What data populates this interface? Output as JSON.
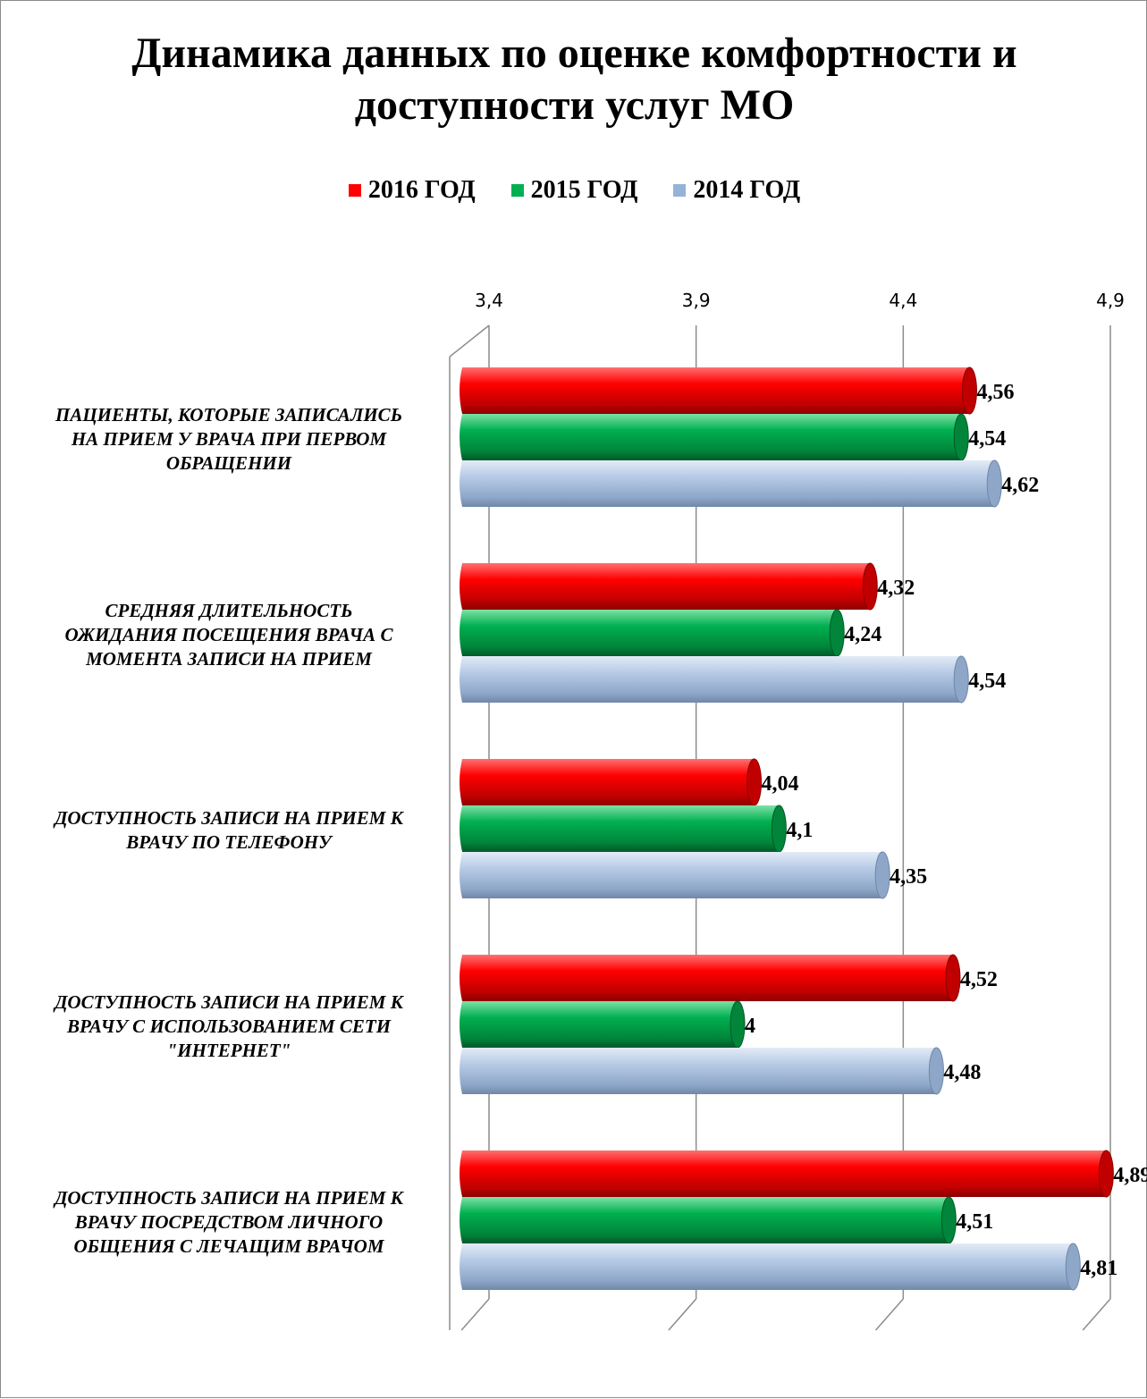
{
  "chart_data": {
    "type": "bar",
    "orientation": "horizontal",
    "title": "Динамика данных по оценке комфортности и доступности услуг МО",
    "xlim": [
      3.4,
      4.9
    ],
    "xticks": [
      "3,4",
      "3,9",
      "4,4",
      "4,9"
    ],
    "xtick_values": [
      3.4,
      3.9,
      4.4,
      4.9
    ],
    "grid": true,
    "legend_position": "top",
    "categories": [
      "ПАЦИЕНТЫ, КОТОРЫЕ ЗАПИСАЛИСЬ НА ПРИЕМ У ВРАЧА ПРИ ПЕРВОМ ОБРАЩЕНИИ",
      "СРЕДНЯЯ ДЛИТЕЛЬНОСТЬ ОЖИДАНИЯ ПОСЕЩЕНИЯ ВРАЧА С МОМЕНТА ЗАПИСИ НА ПРИЕМ",
      "ДОСТУПНОСТЬ ЗАПИСИ НА ПРИЕМ К ВРАЧУ ПО ТЕЛЕФОНУ",
      "ДОСТУПНОСТЬ ЗАПИСИ НА ПРИЕМ К ВРАЧУ  С ИСПОЛЬЗОВАНИЕМ СЕТИ \"ИНТЕРНЕТ\"",
      "ДОСТУПНОСТЬ ЗАПИСИ НА ПРИЕМ К ВРАЧУ ПОСРЕДСТВОМ ЛИЧНОГО ОБЩЕНИЯ С ЛЕЧАЩИМ ВРАЧОМ"
    ],
    "category_lines": [
      [
        "ПАЦИЕНТЫ, КОТОРЫЕ ЗАПИСАЛИСЬ",
        "НА ПРИЕМ У ВРАЧА ПРИ ПЕРВОМ",
        "ОБРАЩЕНИИ"
      ],
      [
        "СРЕДНЯЯ ДЛИТЕЛЬНОСТЬ",
        "ОЖИДАНИЯ ПОСЕЩЕНИЯ ВРАЧА С",
        "МОМЕНТА ЗАПИСИ НА ПРИЕМ"
      ],
      [
        "ДОСТУПНОСТЬ ЗАПИСИ НА ПРИЕМ К",
        "ВРАЧУ ПО ТЕЛЕФОНУ"
      ],
      [
        "ДОСТУПНОСТЬ ЗАПИСИ НА ПРИЕМ К",
        "ВРАЧУ  С ИСПОЛЬЗОВАНИЕМ СЕТИ",
        "\"ИНТЕРНЕТ\""
      ],
      [
        "ДОСТУПНОСТЬ ЗАПИСИ НА ПРИЕМ К",
        "ВРАЧУ ПОСРЕДСТВОМ ЛИЧНОГО",
        "ОБЩЕНИЯ С ЛЕЧАЩИМ ВРАЧОМ"
      ]
    ],
    "series": [
      {
        "name": "2016 ГОД",
        "color": "#ff0000",
        "values": [
          4.56,
          4.32,
          4.04,
          4.52,
          4.89
        ],
        "labels": [
          "4,56",
          "4,32",
          "4,04",
          "4,52",
          "4,89"
        ]
      },
      {
        "name": "2015 ГОД",
        "color": "#00b050",
        "values": [
          4.54,
          4.24,
          4.1,
          4.0,
          4.51
        ],
        "labels": [
          "4,54",
          "4,24",
          "4,1",
          "4",
          "4,51"
        ]
      },
      {
        "name": "2014 ГОД",
        "color": "#95b3d7",
        "values": [
          4.62,
          4.54,
          4.35,
          4.48,
          4.81
        ],
        "labels": [
          "4,62",
          "4,54",
          "4,35",
          "4,48",
          "4,81"
        ]
      }
    ]
  }
}
